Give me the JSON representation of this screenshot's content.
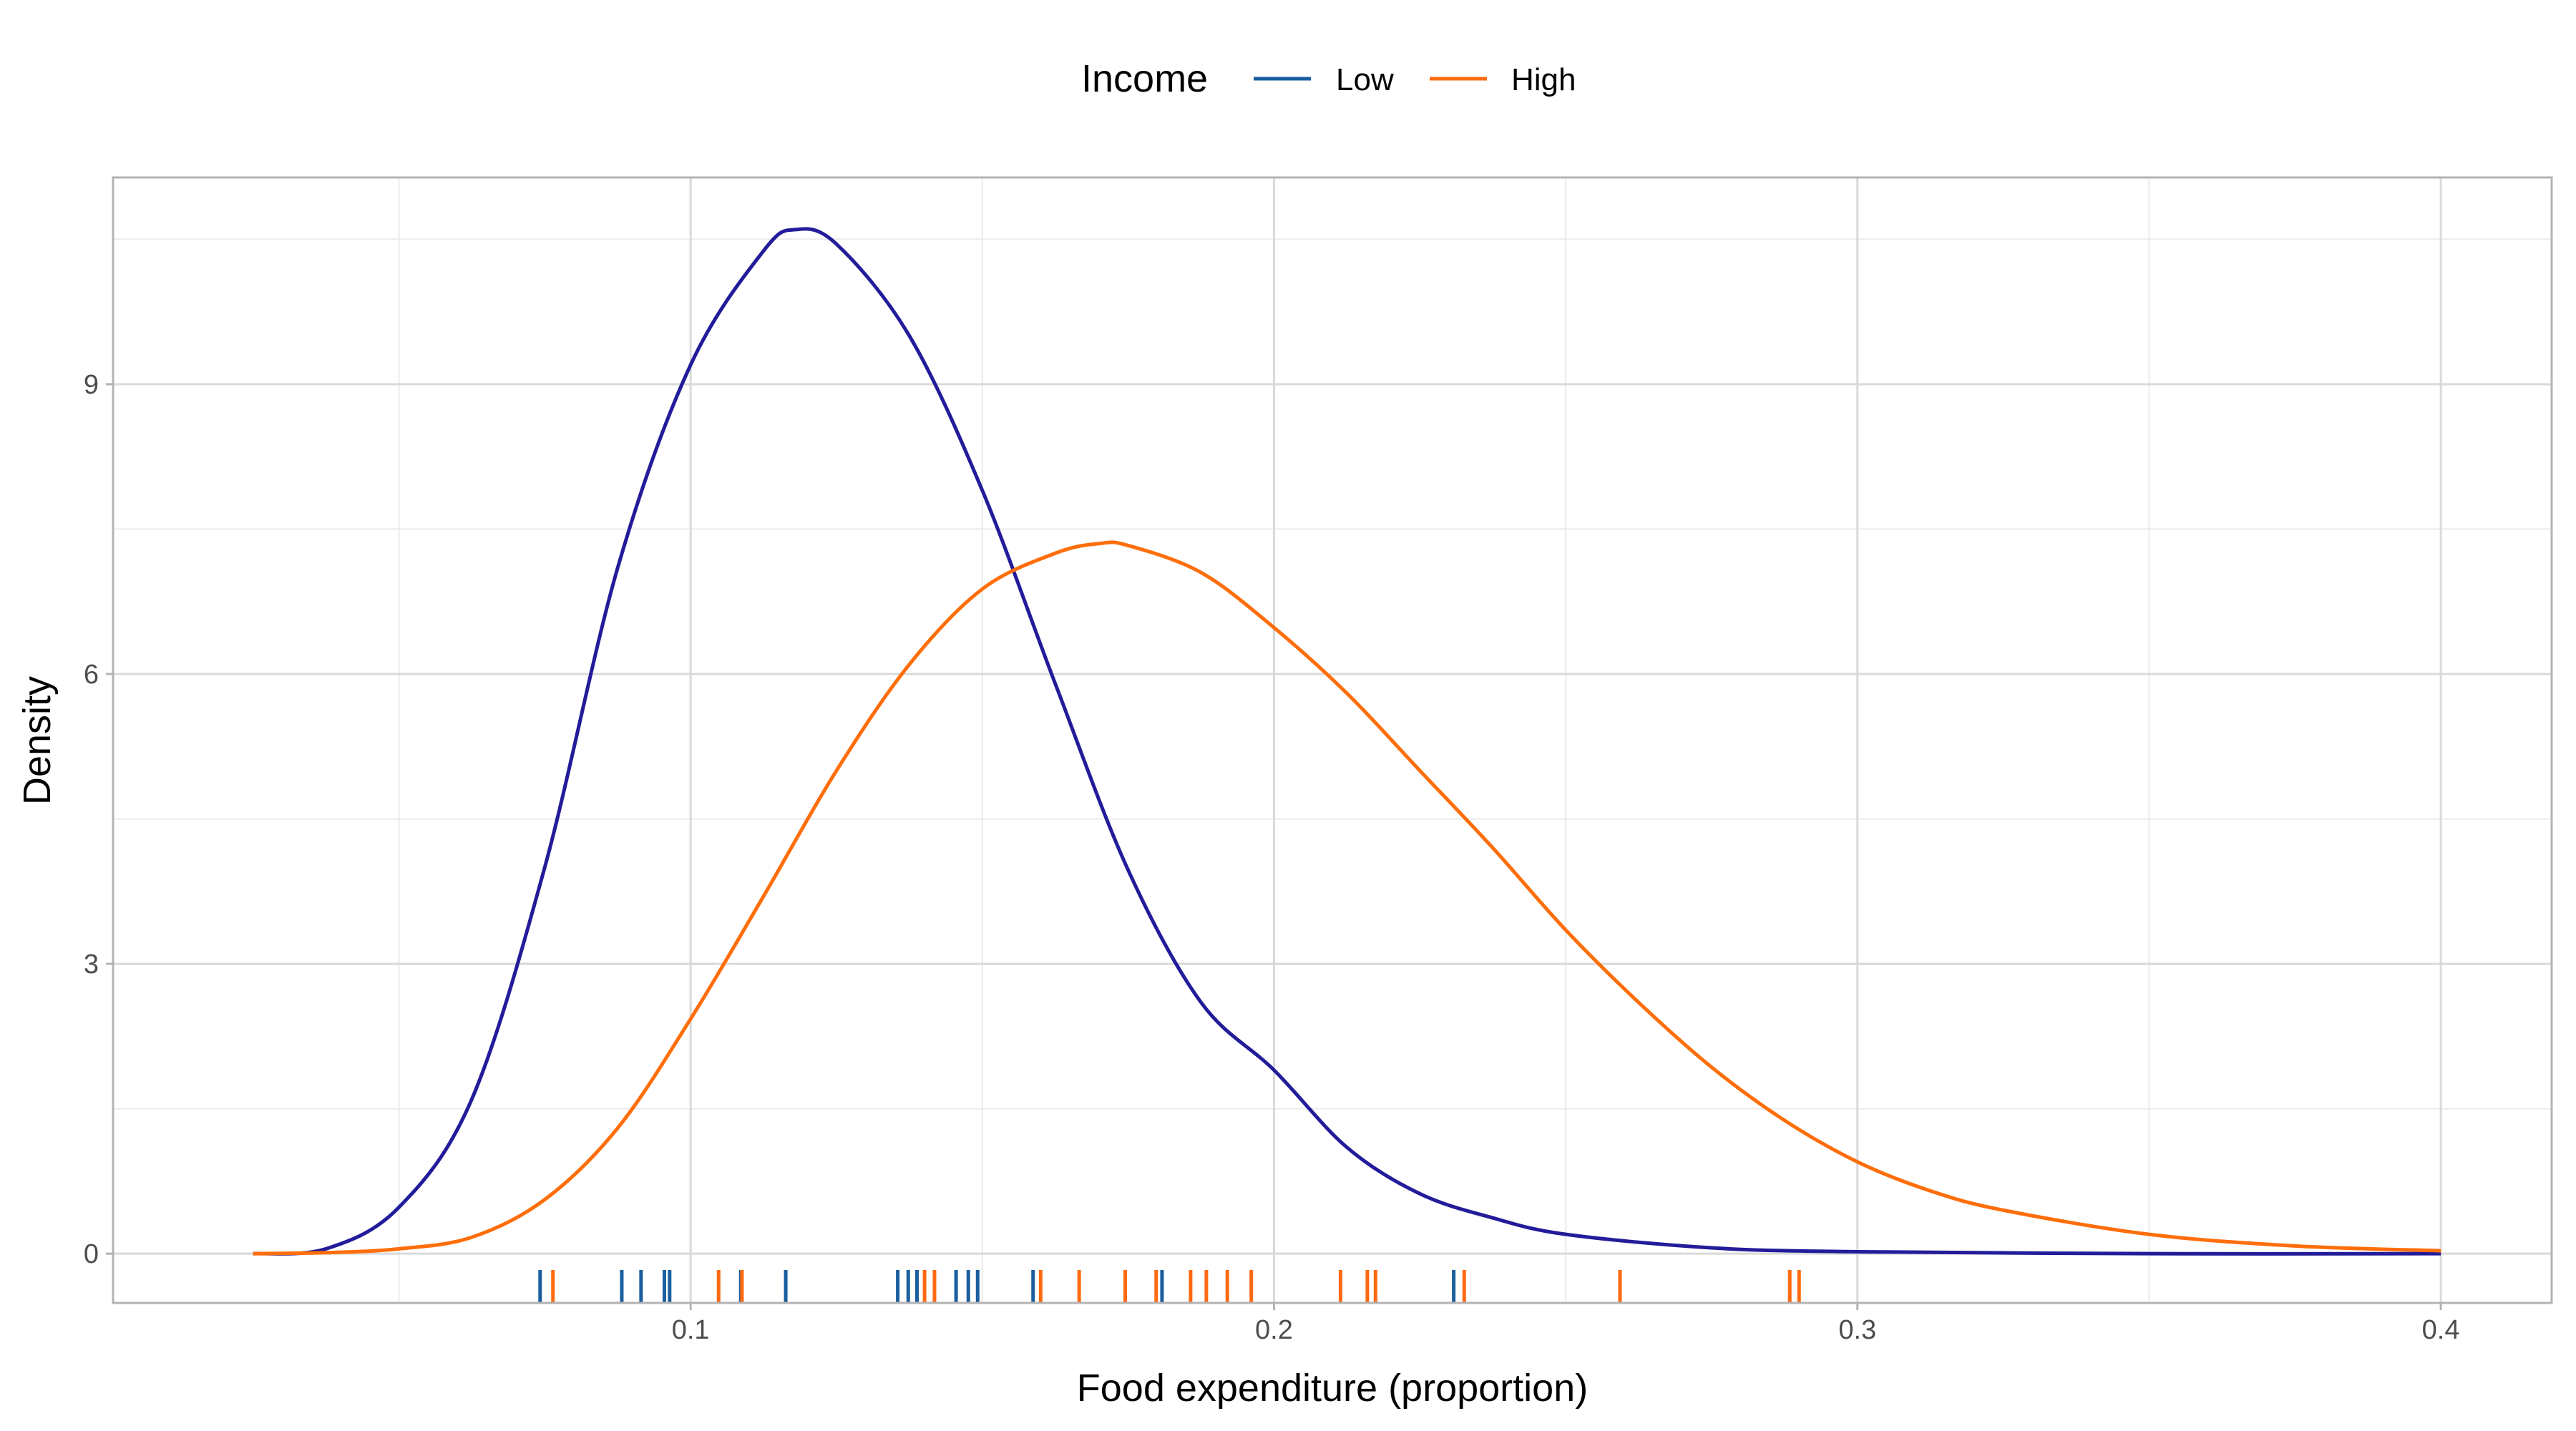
{
  "chart_data": {
    "type": "line",
    "title": "",
    "xlabel": "Food expenditure (proportion)",
    "ylabel": "Density",
    "xlim": [
      0.001,
      0.419
    ],
    "ylim": [
      -0.51,
      11.14
    ],
    "xticks": [
      0.1,
      0.2,
      0.3,
      0.4
    ],
    "xtick_labels": [
      "0.1",
      "0.2",
      "0.3",
      "0.4"
    ],
    "x_minor": [
      0.05,
      0.15,
      0.25,
      0.35
    ],
    "yticks": [
      0,
      3,
      6,
      9
    ],
    "ytick_labels": [
      "0",
      "3",
      "6",
      "9"
    ],
    "y_minor": [
      1.5,
      4.5,
      7.5,
      10.5
    ],
    "grid": true,
    "legend": {
      "title": "Income",
      "placement": "top",
      "entries": [
        "Low",
        "High"
      ]
    },
    "series": [
      {
        "name": "Low",
        "curve_color": "#231c9a",
        "rug_color": "#1a5e9e",
        "x": [
          0.025,
          0.0375,
          0.05,
          0.0625,
          0.075,
          0.0875,
          0.1,
          0.1125,
          0.118,
          0.125,
          0.1375,
          0.15,
          0.1625,
          0.175,
          0.1875,
          0.2,
          0.2125,
          0.225,
          0.2375,
          0.25,
          0.275,
          0.3,
          0.35,
          0.4
        ],
        "y": [
          0,
          0.05,
          0.48,
          1.6,
          4.0,
          7.1,
          9.2,
          10.38,
          10.6,
          10.45,
          9.5,
          7.9,
          5.9,
          3.97,
          2.6,
          1.9,
          1.1,
          0.62,
          0.37,
          0.2,
          0.06,
          0.02,
          0,
          0
        ],
        "rug": [
          0.0742,
          0.0882,
          0.0915,
          0.0955,
          0.0964,
          0.1086,
          0.1163,
          0.1355,
          0.1373,
          0.1388,
          0.1455,
          0.1476,
          0.1492,
          0.1587,
          0.1808,
          0.2308
        ]
      },
      {
        "name": "High",
        "curve_color": "#ff6e0a",
        "rug_color": "#ff6a10",
        "x": [
          0.025,
          0.0375,
          0.05,
          0.0625,
          0.075,
          0.0875,
          0.1,
          0.1125,
          0.125,
          0.1375,
          0.15,
          0.1625,
          0.17,
          0.175,
          0.1875,
          0.2,
          0.2125,
          0.225,
          0.2375,
          0.25,
          0.2625,
          0.275,
          0.2875,
          0.3,
          0.3125,
          0.325,
          0.35,
          0.375,
          0.4
        ],
        "y": [
          0,
          0.01,
          0.05,
          0.17,
          0.56,
          1.3,
          2.43,
          3.7,
          5.0,
          6.1,
          6.88,
          7.25,
          7.35,
          7.33,
          7.05,
          6.48,
          5.8,
          5.0,
          4.2,
          3.35,
          2.6,
          1.93,
          1.38,
          0.95,
          0.65,
          0.45,
          0.2,
          0.08,
          0.03
        ],
        "rug": [
          0.0764,
          0.1048,
          0.1088,
          0.1401,
          0.1418,
          0.16,
          0.1666,
          0.1745,
          0.1798,
          0.1857,
          0.1884,
          0.192,
          0.1961,
          0.2114,
          0.216,
          0.2174,
          0.2326,
          0.2593,
          0.2884,
          0.29
        ]
      }
    ]
  }
}
